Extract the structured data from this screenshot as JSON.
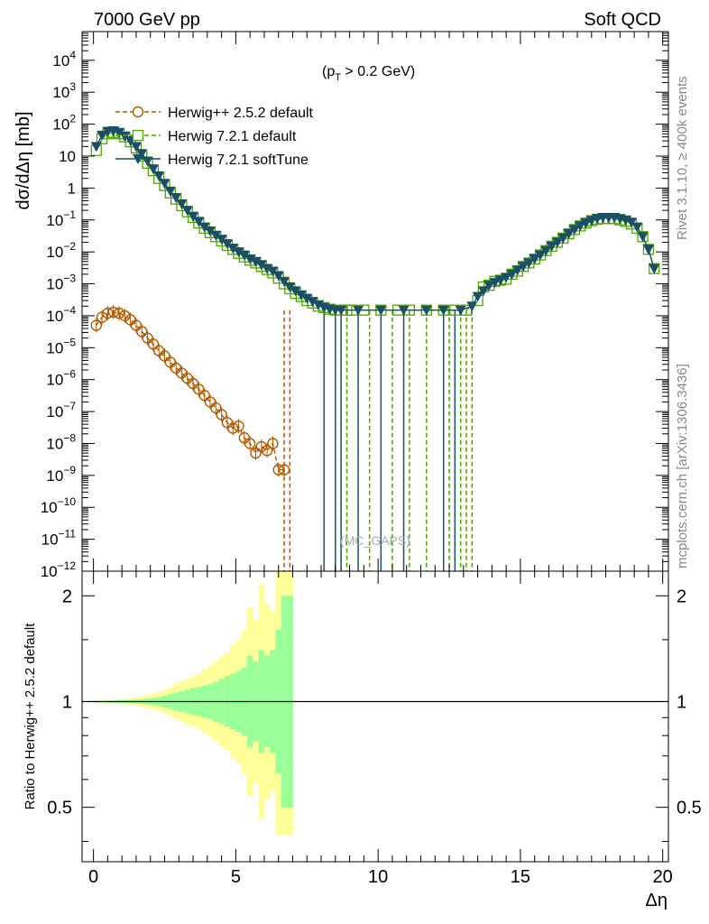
{
  "header": {
    "left": "7000 GeV pp",
    "right": "Soft QCD"
  },
  "side_labels": {
    "rivet": "Rivet 3.1.10, ≥ 400k events",
    "mcplots": "mcplots.cern.ch [arXiv:1306.3436]"
  },
  "cut_label": {
    "pre": "(p",
    "sub": "T",
    "post": " > 0.2 GeV)"
  },
  "watermark": "(MC_GAPS)",
  "colors": {
    "herwigpp": "#b35900",
    "h721def": "#4da600",
    "h721soft": "#1a4f66",
    "band_yellow": "#ffff99",
    "band_green": "#99ff99"
  },
  "chart_data": [
    {
      "type": "line",
      "title": "",
      "ylabel_pre": "dσ/dΔη [mb]",
      "xlim": [
        -0.4,
        20.2
      ],
      "ylim_exp": [
        -12,
        4.9
      ],
      "yscale": "log",
      "yticks": [
        {
          "e": 4,
          "label": "10",
          "sup": "4"
        },
        {
          "e": 3,
          "label": "10",
          "sup": "3"
        },
        {
          "e": 2,
          "label": "10",
          "sup": "2"
        },
        {
          "e": 1,
          "label": "10",
          "sup": ""
        },
        {
          "e": 0,
          "label": "1",
          "sup": ""
        },
        {
          "e": -1,
          "label": "10",
          "sup": "−1"
        },
        {
          "e": -2,
          "label": "10",
          "sup": "−2"
        },
        {
          "e": -3,
          "label": "10",
          "sup": "−3"
        },
        {
          "e": -4,
          "label": "10",
          "sup": "−4"
        },
        {
          "e": -5,
          "label": "10",
          "sup": "−5"
        },
        {
          "e": -6,
          "label": "10",
          "sup": "−6"
        },
        {
          "e": -7,
          "label": "10",
          "sup": "−7"
        },
        {
          "e": -8,
          "label": "10",
          "sup": "−8"
        },
        {
          "e": -9,
          "label": "10",
          "sup": "−9"
        },
        {
          "e": -10,
          "label": "10",
          "sup": "−10"
        },
        {
          "e": -11,
          "label": "10",
          "sup": "−11"
        },
        {
          "e": -12,
          "label": "10",
          "sup": "−12"
        }
      ],
      "legend_position": "top-left",
      "series": [
        {
          "name": "Herwig++ 2.5.2 default",
          "style": "circle-dashed",
          "x": [
            0.1,
            0.3,
            0.5,
            0.7,
            0.9,
            1.1,
            1.3,
            1.5,
            1.7,
            1.9,
            2.1,
            2.3,
            2.5,
            2.7,
            2.9,
            3.1,
            3.3,
            3.5,
            3.7,
            3.9,
            4.1,
            4.3,
            4.5,
            4.7,
            4.9,
            5.1,
            5.3,
            5.5,
            5.7,
            5.9,
            6.1,
            6.3,
            6.5,
            6.7,
            6.9
          ],
          "y": [
            5e-05,
            9e-05,
            0.00012,
            0.00013,
            0.00012,
            0.0001,
            7.5e-05,
            5e-05,
            3.2e-05,
            2e-05,
            1.3e-05,
            8e-06,
            5.5e-06,
            3.5e-06,
            2.3e-06,
            1.6e-06,
            1.1e-06,
            7.5e-07,
            5e-07,
            3.2e-07,
            2e-07,
            1.3e-07,
            8e-08,
            4.5e-08,
            3e-08,
            3.5e-08,
            1.5e-08,
            1e-08,
            5e-09,
            8e-09,
            6e-09,
            1e-08,
            1.5e-09,
            1.5e-09,
            null
          ]
        },
        {
          "name": "Herwig 7.2.1 default",
          "style": "square-dashed",
          "x": [
            0.1,
            0.3,
            0.5,
            0.7,
            0.9,
            1.1,
            1.3,
            1.5,
            1.7,
            1.9,
            2.1,
            2.3,
            2.5,
            2.7,
            2.9,
            3.1,
            3.3,
            3.5,
            3.7,
            3.9,
            4.1,
            4.3,
            4.5,
            4.7,
            4.9,
            5.1,
            5.3,
            5.5,
            5.7,
            5.9,
            6.1,
            6.3,
            6.5,
            6.7,
            6.9,
            7.1,
            7.3,
            7.5,
            7.7,
            7.9,
            8.1,
            8.3,
            8.5,
            8.7,
            8.9,
            9.1,
            9.5,
            10.1,
            10.7,
            11.1,
            11.7,
            12.3,
            12.7,
            13.1,
            13.5,
            13.7,
            13.9,
            14.1,
            14.3,
            14.5,
            14.7,
            14.9,
            15.1,
            15.3,
            15.5,
            15.7,
            15.9,
            16.1,
            16.3,
            16.5,
            16.7,
            16.9,
            17.1,
            17.3,
            17.5,
            17.7,
            17.9,
            18.1,
            18.3,
            18.5,
            18.7,
            18.9,
            19.1,
            19.3,
            19.5,
            19.7
          ],
          "y": [
            15,
            35,
            50,
            55,
            50,
            40,
            28,
            18,
            10,
            6,
            3.5,
            2,
            1.2,
            0.7,
            0.45,
            0.28,
            0.18,
            0.12,
            0.08,
            0.055,
            0.04,
            0.03,
            0.022,
            0.016,
            0.012,
            0.009,
            0.007,
            0.0055,
            0.0045,
            0.0035,
            0.0028,
            0.0022,
            0.0015,
            0.001,
            0.0007,
            0.0005,
            0.0004,
            0.0003,
            0.00025,
            0.0002,
            0.00018,
            0.00016,
            0.00015,
            0.00015,
            0.00015,
            0.00015,
            0.00015,
            0.00015,
            0.00015,
            0.00015,
            0.00015,
            0.00015,
            0.00015,
            0.00015,
            0.0003,
            0.0008,
            0.0009,
            0.0012,
            0.0013,
            0.0014,
            0.002,
            0.0025,
            0.0035,
            0.0045,
            0.006,
            0.008,
            0.011,
            0.015,
            0.02,
            0.027,
            0.037,
            0.05,
            0.065,
            0.08,
            0.095,
            0.105,
            0.11,
            0.11,
            0.11,
            0.1,
            0.09,
            0.075,
            0.055,
            0.03,
            0.012,
            0.003
          ]
        },
        {
          "name": "Herwig 7.2.1 softTune",
          "style": "triangle-solid",
          "x": [
            0.1,
            0.3,
            0.5,
            0.7,
            0.9,
            1.1,
            1.3,
            1.5,
            1.7,
            1.9,
            2.1,
            2.3,
            2.5,
            2.7,
            2.9,
            3.1,
            3.3,
            3.5,
            3.7,
            3.9,
            4.1,
            4.3,
            4.5,
            4.7,
            4.9,
            5.1,
            5.3,
            5.5,
            5.7,
            5.9,
            6.1,
            6.3,
            6.5,
            6.7,
            6.9,
            7.1,
            7.3,
            7.5,
            7.7,
            7.9,
            8.1,
            8.3,
            8.5,
            8.7,
            9.3,
            10.1,
            10.9,
            11.7,
            12.3,
            12.9,
            13.3,
            13.5,
            13.7,
            13.9,
            14.1,
            14.3,
            14.5,
            14.7,
            14.9,
            15.1,
            15.3,
            15.5,
            15.7,
            15.9,
            16.1,
            16.3,
            16.5,
            16.7,
            16.9,
            17.1,
            17.3,
            17.5,
            17.7,
            17.9,
            18.1,
            18.3,
            18.5,
            18.7,
            18.9,
            19.1,
            19.3,
            19.5,
            19.7
          ],
          "y": [
            20,
            45,
            60,
            62,
            55,
            42,
            30,
            20,
            12,
            7,
            4,
            2.4,
            1.4,
            0.8,
            0.5,
            0.32,
            0.2,
            0.13,
            0.09,
            0.06,
            0.045,
            0.033,
            0.025,
            0.018,
            0.013,
            0.01,
            0.008,
            0.006,
            0.005,
            0.004,
            0.003,
            0.0025,
            0.0018,
            0.0012,
            0.0008,
            0.0006,
            0.00045,
            0.00035,
            0.00028,
            0.00022,
            0.00018,
            0.00016,
            0.00015,
            0.00015,
            0.00015,
            0.00015,
            0.00015,
            0.00015,
            0.00015,
            0.00015,
            0.0002,
            0.0004,
            0.0006,
            0.0009,
            0.0011,
            0.0013,
            0.0016,
            0.002,
            0.0027,
            0.0035,
            0.0045,
            0.006,
            0.008,
            0.011,
            0.015,
            0.02,
            0.027,
            0.037,
            0.05,
            0.065,
            0.08,
            0.095,
            0.11,
            0.12,
            0.12,
            0.12,
            0.11,
            0.1,
            0.085,
            0.06,
            0.03,
            0.012,
            0.003
          ]
        }
      ],
      "dropouts": {
        "h721def": [
          8.9,
          9.7,
          10.5,
          11.1,
          11.7,
          12.5,
          12.9,
          13.1,
          13.3
        ],
        "h721soft": [
          8.1,
          8.5,
          8.7,
          9.3,
          10.1,
          10.9,
          12.3,
          12.7
        ],
        "herwigpp": [
          6.7,
          6.9
        ]
      }
    },
    {
      "type": "area",
      "ylabel": "Ratio to Herwig++ 2.5.2 default",
      "xlabel": "Δη",
      "xlim": [
        -0.4,
        20.2
      ],
      "ylim": [
        0.35,
        2.35
      ],
      "yscale": "log",
      "yticks": [
        {
          "v": 0.5,
          "label": "0.5"
        },
        {
          "v": 1,
          "label": "1"
        },
        {
          "v": 2,
          "label": "2"
        }
      ],
      "xticks": [
        {
          "v": 0,
          "label": "0"
        },
        {
          "v": 5,
          "label": "5"
        },
        {
          "v": 10,
          "label": "10"
        },
        {
          "v": 15,
          "label": "15"
        },
        {
          "v": 20,
          "label": "20"
        }
      ],
      "bins": [
        0.0,
        0.2,
        0.4,
        0.6,
        0.8,
        1.0,
        1.2,
        1.4,
        1.6,
        1.8,
        2.0,
        2.2,
        2.4,
        2.6,
        2.8,
        3.0,
        3.2,
        3.4,
        3.6,
        3.8,
        4.0,
        4.2,
        4.4,
        4.6,
        4.8,
        5.0,
        5.2,
        5.4,
        5.6,
        5.8,
        6.0,
        6.2,
        6.4,
        6.6,
        6.8,
        7.0
      ],
      "green_up": [
        1.005,
        1.005,
        1.006,
        1.007,
        1.008,
        1.009,
        1.01,
        1.012,
        1.015,
        1.02,
        1.025,
        1.03,
        1.04,
        1.05,
        1.06,
        1.07,
        1.08,
        1.09,
        1.1,
        1.11,
        1.12,
        1.14,
        1.16,
        1.18,
        1.2,
        1.22,
        1.25,
        1.35,
        1.3,
        1.4,
        1.35,
        1.4,
        1.6,
        2.0,
        2.0
      ],
      "yellow_up": [
        1.005,
        1.007,
        1.01,
        1.012,
        1.015,
        1.018,
        1.022,
        1.027,
        1.035,
        1.045,
        1.055,
        1.065,
        1.08,
        1.1,
        1.12,
        1.14,
        1.16,
        1.18,
        1.2,
        1.23,
        1.26,
        1.3,
        1.34,
        1.38,
        1.45,
        1.5,
        1.6,
        1.85,
        1.7,
        2.15,
        1.9,
        1.8,
        2.4,
        2.4,
        2.4
      ]
    }
  ]
}
